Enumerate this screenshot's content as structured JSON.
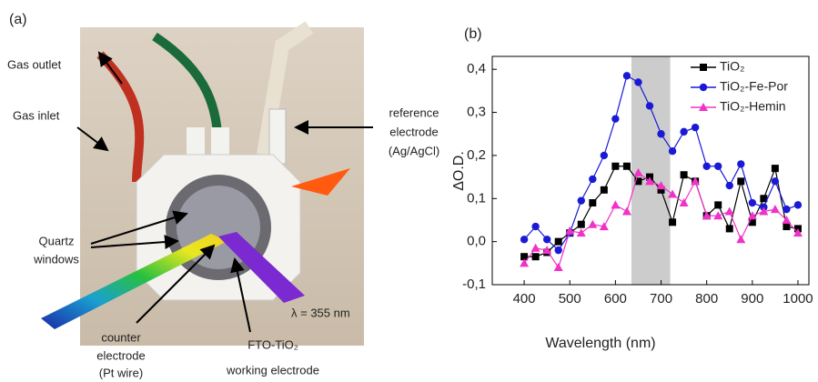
{
  "panel_a": {
    "label": "(a)",
    "gas_outlet": "Gas outlet",
    "gas_inlet": "Gas inlet",
    "reference": [
      "reference",
      "electrode",
      "(Ag/AgCl)"
    ],
    "quartz": [
      "Quartz",
      "windows"
    ],
    "counter": [
      "counter",
      "electrode",
      "(Pt wire)"
    ],
    "working": [
      "FTO-TiO₂",
      "working electrode"
    ],
    "wavelength": "λ = 355 nm"
  },
  "chart_data": {
    "type": "line",
    "panel_label": "(b)",
    "x_label": "Wavelength (nm)",
    "y_label": "ΔO.D.",
    "x": [
      400,
      425,
      450,
      475,
      500,
      525,
      550,
      575,
      600,
      625,
      650,
      675,
      700,
      725,
      750,
      775,
      800,
      825,
      850,
      875,
      900,
      925,
      950,
      975,
      1000
    ],
    "series": [
      {
        "name": "TiO₂",
        "color": "#000000",
        "marker": "square",
        "values": [
          -0.035,
          -0.035,
          -0.025,
          0.0,
          0.02,
          0.04,
          0.09,
          0.12,
          0.175,
          0.175,
          0.14,
          0.15,
          0.12,
          0.045,
          0.155,
          0.14,
          0.06,
          0.085,
          0.03,
          0.14,
          0.045,
          0.1,
          0.17,
          0.035,
          0.03
        ]
      },
      {
        "name": "TiO₂-Fe-Por",
        "color": "#1a1ad6",
        "marker": "circle",
        "values": [
          0.005,
          0.035,
          0.005,
          -0.02,
          0.02,
          0.095,
          0.145,
          0.2,
          0.285,
          0.385,
          0.37,
          0.315,
          0.25,
          0.21,
          0.255,
          0.265,
          0.175,
          0.175,
          0.13,
          0.18,
          0.09,
          0.08,
          0.14,
          0.075,
          0.085
        ]
      },
      {
        "name": "TiO₂-Hemin",
        "color": "#f032c8",
        "marker": "triangle",
        "values": [
          -0.05,
          -0.015,
          -0.02,
          -0.06,
          0.025,
          0.02,
          0.04,
          0.035,
          0.085,
          0.07,
          0.16,
          0.14,
          0.13,
          0.11,
          0.09,
          0.14,
          0.06,
          0.06,
          0.07,
          0.005,
          0.06,
          0.07,
          0.075,
          0.05,
          0.02
        ]
      }
    ],
    "highlight_band": [
      635,
      720
    ],
    "band_color": "#cccccc",
    "xlim": [
      330,
      1024
    ],
    "xticks": [
      400,
      500,
      600,
      700,
      800,
      900,
      1000
    ],
    "ylim": [
      -0.1,
      0.43
    ],
    "yticks": [
      {
        "value": -0.1,
        "label": "-0,1"
      },
      {
        "value": 0.0,
        "label": "0,0"
      },
      {
        "value": 0.1,
        "label": "0,1"
      },
      {
        "value": 0.2,
        "label": "0,2"
      },
      {
        "value": 0.3,
        "label": "0,3"
      },
      {
        "value": 0.4,
        "label": "0,4"
      }
    ],
    "legend": "upper right"
  }
}
